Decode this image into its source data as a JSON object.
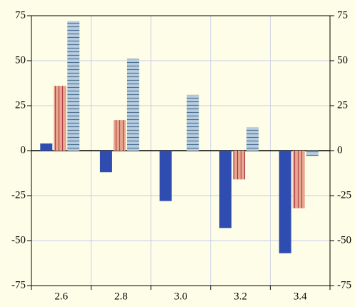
{
  "chart_data": {
    "type": "bar",
    "categories": [
      "2.6",
      "2.8",
      "3.0",
      "3.2",
      "3.4"
    ],
    "series": [
      {
        "color": "#2f4db0",
        "hatch": "none",
        "values": [
          4,
          -12,
          -28,
          -43,
          -57
        ]
      },
      {
        "color": "#e8a890",
        "hatch": "vertical",
        "values": [
          36,
          17,
          0,
          -16,
          -32
        ]
      },
      {
        "color": "#b8cde0",
        "hatch": "horizontal",
        "values": [
          72,
          51,
          31,
          13,
          -3
        ]
      }
    ],
    "ylim": [
      -75,
      75
    ],
    "yticks": [
      -75,
      -50,
      -25,
      0,
      25,
      50,
      75
    ],
    "grid": true,
    "right_axis": true
  }
}
